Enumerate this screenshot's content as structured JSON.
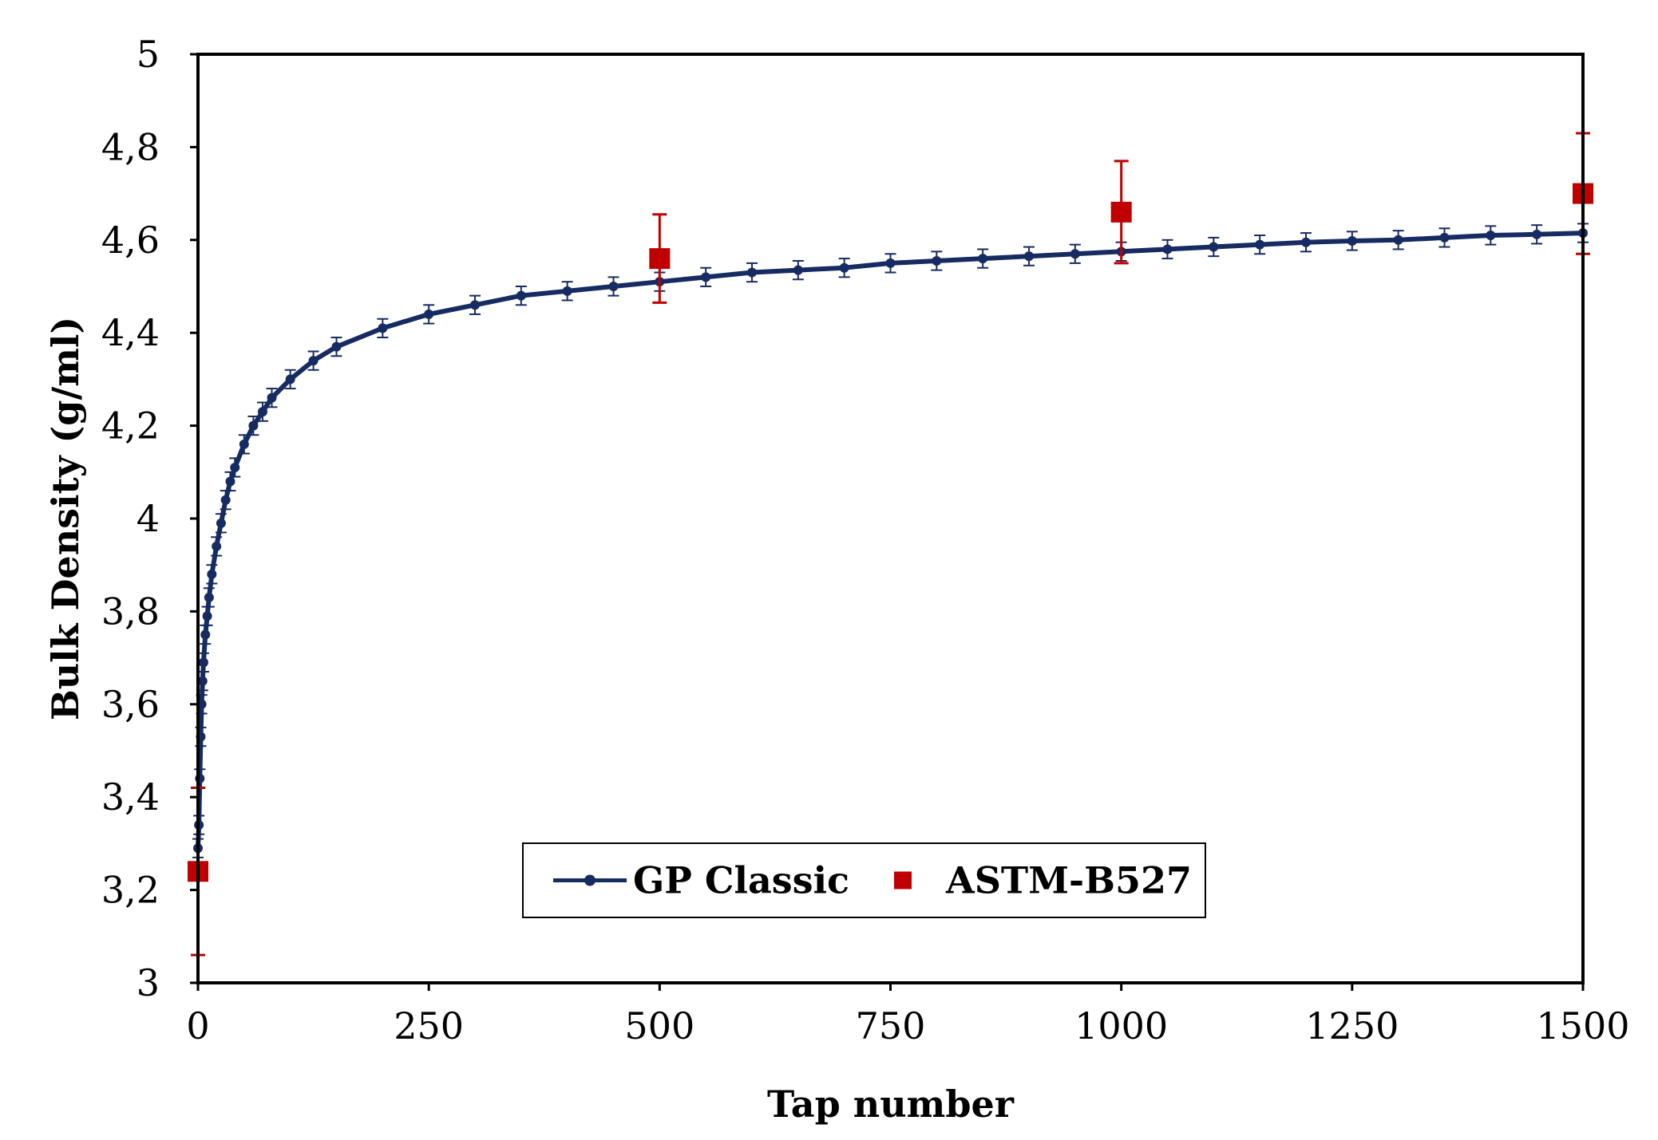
{
  "chart_data": {
    "type": "scatter",
    "title": "",
    "xlabel": "Tap number",
    "ylabel": "Bulk Density (g/ml)",
    "xlim": [
      0,
      1500
    ],
    "ylim": [
      3,
      5
    ],
    "x_ticks": [
      0,
      250,
      500,
      750,
      1000,
      1250,
      1500
    ],
    "x_tick_labels": [
      "0",
      "250",
      "500",
      "750",
      "1000",
      "1250",
      "1500"
    ],
    "y_ticks": [
      3,
      3.2,
      3.4,
      3.6,
      3.8,
      4,
      4.2,
      4.4,
      4.6,
      4.8,
      5
    ],
    "y_tick_labels": [
      "3",
      "3,2",
      "3,4",
      "3,6",
      "3,8",
      "4",
      "4,2",
      "4,4",
      "4,6",
      "4,8",
      "5"
    ],
    "grid": false,
    "legend_position": "bottom-center",
    "series": [
      {
        "name": "GP Classic",
        "style": "line-with-markers",
        "color": "#172B63",
        "x": [
          0,
          1,
          2,
          3,
          4,
          5,
          6,
          8,
          10,
          12,
          15,
          20,
          25,
          30,
          35,
          40,
          50,
          60,
          70,
          80,
          100,
          125,
          150,
          200,
          250,
          300,
          350,
          400,
          450,
          500,
          550,
          600,
          650,
          700,
          750,
          800,
          850,
          900,
          950,
          1000,
          1050,
          1100,
          1150,
          1200,
          1250,
          1300,
          1350,
          1400,
          1450,
          1500
        ],
        "y": [
          3.29,
          3.34,
          3.44,
          3.53,
          3.6,
          3.65,
          3.69,
          3.75,
          3.79,
          3.83,
          3.88,
          3.94,
          3.99,
          4.04,
          4.08,
          4.11,
          4.16,
          4.2,
          4.23,
          4.26,
          4.3,
          4.34,
          4.37,
          4.41,
          4.44,
          4.46,
          4.48,
          4.49,
          4.5,
          4.51,
          4.52,
          4.53,
          4.535,
          4.54,
          4.55,
          4.555,
          4.56,
          4.565,
          4.57,
          4.575,
          4.58,
          4.585,
          4.59,
          4.595,
          4.598,
          4.6,
          4.605,
          4.61,
          4.612,
          4.615
        ],
        "error": 0.02
      },
      {
        "name": "ASTM-B527",
        "style": "square-markers",
        "color": "#C00000",
        "x": [
          0,
          500,
          1000,
          1500
        ],
        "y": [
          3.24,
          4.56,
          4.66,
          4.7
        ],
        "error_plus": [
          0.18,
          0.095,
          0.11,
          0.13
        ],
        "error_minus": [
          0.18,
          0.095,
          0.11,
          0.13
        ]
      }
    ]
  }
}
